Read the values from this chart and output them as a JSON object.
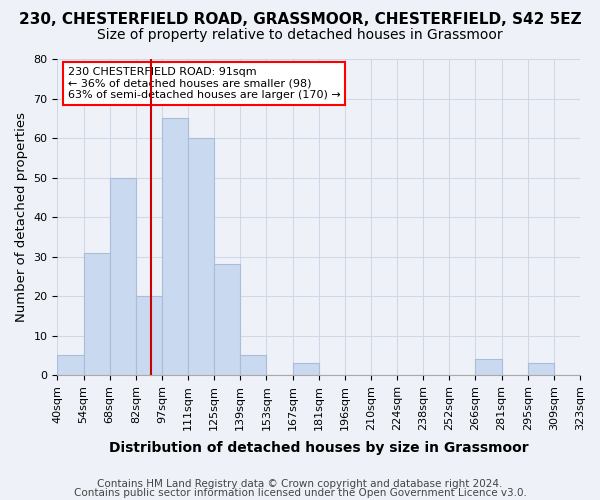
{
  "title_line1": "230, CHESTERFIELD ROAD, GRASSMOOR, CHESTERFIELD, S42 5EZ",
  "title_line2": "Size of property relative to detached houses in Grassmoor",
  "xlabel": "Distribution of detached houses by size in Grassmoor",
  "ylabel": "Number of detached properties",
  "tick_labels": [
    "40sqm",
    "54sqm",
    "68sqm",
    "82sqm",
    "97sqm",
    "111sqm",
    "125sqm",
    "139sqm",
    "153sqm",
    "167sqm",
    "181sqm",
    "196sqm",
    "210sqm",
    "224sqm",
    "238sqm",
    "252sqm",
    "266sqm",
    "281sqm",
    "295sqm",
    "309sqm",
    "323sqm"
  ],
  "bar_values": [
    5,
    31,
    50,
    20,
    65,
    60,
    28,
    5,
    0,
    3,
    0,
    0,
    0,
    0,
    0,
    0,
    4,
    0,
    3,
    0
  ],
  "bar_color": "#c9d9f0",
  "bar_edge_color": "#aabcd8",
  "annotation_text": "230 CHESTERFIELD ROAD: 91sqm\n← 36% of detached houses are smaller (98)\n63% of semi-detached houses are larger (170) →",
  "annotation_box_color": "white",
  "annotation_box_edge": "red",
  "red_line_color": "#cc0000",
  "ylim": [
    0,
    80
  ],
  "yticks": [
    0,
    10,
    20,
    30,
    40,
    50,
    60,
    70,
    80
  ],
  "grid_color": "#d0d8e8",
  "background_color": "#eef2f8",
  "footer_line1": "Contains HM Land Registry data © Crown copyright and database right 2024.",
  "footer_line2": "Contains public sector information licensed under the Open Government Licence v3.0.",
  "title_fontsize": 11,
  "subtitle_fontsize": 10,
  "axis_label_fontsize": 9.5,
  "tick_fontsize": 8,
  "footer_fontsize": 7.5
}
